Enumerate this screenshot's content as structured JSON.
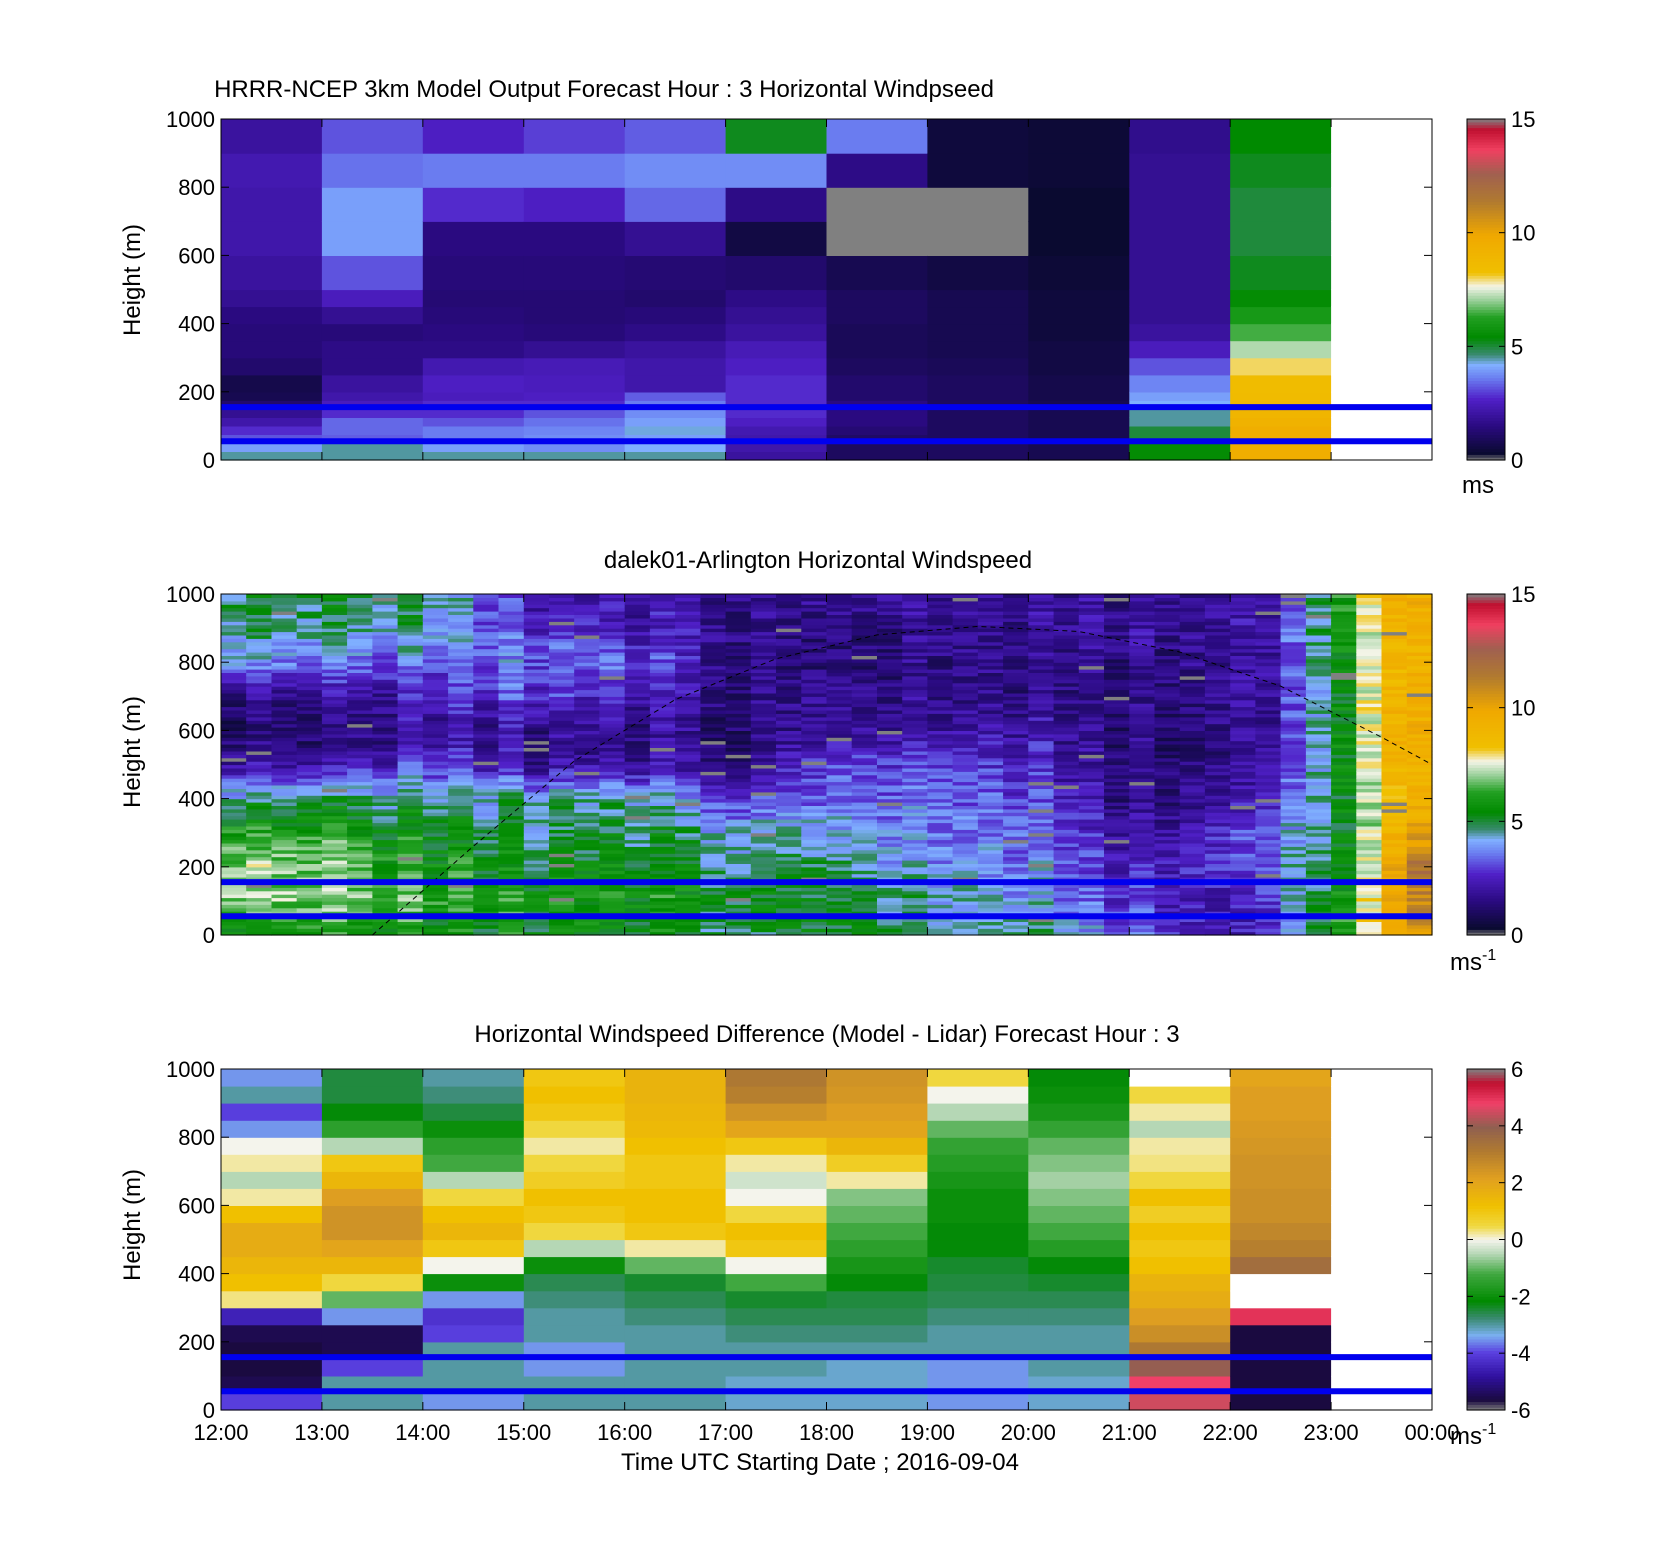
{
  "colors": {
    "reference_line": "#0000ee",
    "missing": "#808080",
    "nodata": "#ffffff",
    "sunline": "#000000"
  },
  "x_axis": {
    "label": "Time UTC  Starting Date ; 2016-09-04",
    "ticks": [
      "12:00",
      "13:00",
      "14:00",
      "15:00",
      "16:00",
      "17:00",
      "18:00",
      "19:00",
      "20:00",
      "21:00",
      "22:00",
      "23:00",
      "00:00"
    ],
    "hour_range": [
      12,
      24
    ]
  },
  "chart_data": [
    {
      "type": "heatmap",
      "title": "HRRR-NCEP 3km Model Output   Forecast Hour : 3 Horizontal Windpseed",
      "ylabel": "Height (m)",
      "yticks": [
        "0",
        "200",
        "400",
        "600",
        "800",
        "1000"
      ],
      "ylim": [
        0,
        1000
      ],
      "xlim": [
        12,
        24
      ],
      "colorbar": {
        "ticks": [
          "0",
          "5",
          "10",
          "15"
        ],
        "range": [
          0,
          15
        ],
        "unit_text": "ms",
        "unit_sup": "",
        "colormap": "speed"
      },
      "reference_lines_m": [
        55,
        155
      ],
      "levels_m": [
        0,
        25,
        50,
        75,
        100,
        125,
        150,
        175,
        200,
        250,
        300,
        350,
        400,
        450,
        500,
        600,
        700,
        800,
        900,
        1000
      ],
      "x_hours": [
        12,
        13,
        14,
        15,
        16,
        17,
        18,
        19,
        20,
        21,
        22,
        23
      ],
      "values": [
        [
          4.5,
          4.0,
          3.2,
          2.8,
          2.2,
          1.8,
          1.2,
          0.8,
          0.7,
          1.2,
          1.4,
          1.4,
          1.5,
          1.8,
          2.0,
          2.2,
          2.2,
          2.3,
          2.0
        ],
        [
          4.5,
          4.5,
          3.3,
          3.4,
          3.4,
          2.8,
          2.5,
          2.2,
          2.0,
          1.6,
          1.6,
          1.4,
          1.8,
          2.5,
          3.2,
          4.0,
          4.0,
          3.5,
          3.2
        ],
        [
          4.5,
          4.0,
          3.6,
          3.6,
          3.2,
          2.8,
          2.8,
          2.5,
          2.6,
          2.3,
          1.6,
          1.5,
          1.4,
          1.3,
          1.4,
          1.5,
          2.8,
          3.6,
          2.6
        ],
        [
          4.5,
          3.8,
          3.8,
          3.7,
          3.5,
          3.2,
          2.8,
          2.6,
          2.5,
          2.4,
          1.8,
          1.4,
          1.3,
          1.3,
          1.4,
          1.5,
          2.6,
          3.6,
          3.0
        ],
        [
          4.5,
          4.2,
          4.0,
          4.3,
          4.0,
          3.8,
          3.6,
          3.3,
          2.2,
          2.2,
          2.0,
          1.6,
          1.4,
          1.2,
          1.3,
          1.8,
          3.4,
          3.8,
          3.3
        ],
        [
          2.0,
          2.2,
          2.2,
          2.3,
          2.6,
          2.8,
          2.8,
          2.8,
          2.8,
          2.6,
          2.4,
          2.0,
          1.8,
          1.6,
          1.2,
          0.6,
          1.6,
          3.8,
          5.2
        ],
        [
          1.0,
          1.0,
          1.1,
          1.3,
          1.5,
          1.5,
          1.5,
          1.2,
          1.2,
          1.0,
          0.9,
          0.9,
          1.0,
          1.0,
          0.8,
          -1,
          -1,
          1.6,
          3.6
        ],
        [
          1.0,
          1.0,
          1.0,
          1.0,
          1.0,
          1.0,
          1.0,
          1.0,
          1.0,
          0.9,
          0.8,
          0.8,
          0.8,
          0.8,
          0.6,
          -1,
          -1,
          0.5,
          0.5
        ],
        [
          0.8,
          0.8,
          0.8,
          0.8,
          0.8,
          0.8,
          0.8,
          0.7,
          0.7,
          0.6,
          0.6,
          0.5,
          0.5,
          0.5,
          0.4,
          0.3,
          0.3,
          0.4,
          0.4
        ],
        [
          5.5,
          5.5,
          5.0,
          5.0,
          4.5,
          4.5,
          4.2,
          4.0,
          3.7,
          3.2,
          2.5,
          2.0,
          1.8,
          1.8,
          1.8,
          1.8,
          1.8,
          1.8,
          1.7
        ],
        [
          9.5,
          9.5,
          9.5,
          9.5,
          9.2,
          9.0,
          8.8,
          8.6,
          8.5,
          8.0,
          7.2,
          6.5,
          6.0,
          5.5,
          5.2,
          5.0,
          5.0,
          5.2,
          5.4
        ],
        [
          null,
          null,
          null,
          null,
          null,
          null,
          null,
          null,
          null,
          null,
          null,
          null,
          null,
          null,
          null,
          null,
          null,
          null,
          null
        ]
      ]
    },
    {
      "type": "heatmap",
      "title": "dalek01-Arlington  Horizontal Windspeed",
      "ylabel": "Height (m)",
      "yticks": [
        "0",
        "200",
        "400",
        "600",
        "800",
        "1000"
      ],
      "ylim": [
        0,
        1000
      ],
      "xlim": [
        12,
        24
      ],
      "colorbar": {
        "ticks": [
          "0",
          "5",
          "10",
          "15"
        ],
        "range": [
          0,
          15
        ],
        "unit_text": "ms",
        "unit_sup": "-1",
        "colormap": "speed"
      },
      "reference_lines_m": [
        55,
        155
      ],
      "sun_elevation_curve": {
        "x_hours": [
          13.5,
          14.5,
          15.5,
          16.5,
          17.5,
          18.5,
          19.5,
          20.5,
          21.5,
          22.5,
          23.5,
          24.0
        ],
        "y_m": [
          0,
          260,
          510,
          690,
          810,
          880,
          905,
          890,
          830,
          730,
          580,
          500
        ]
      },
      "generator": {
        "nx": 48,
        "ny": 100,
        "profiles_hour": [
          12,
          13,
          14,
          15,
          16,
          17,
          18,
          19,
          20,
          21,
          22,
          22.5,
          23,
          23.5,
          24
        ],
        "profiles_m": [
          0,
          100,
          200,
          300,
          400,
          500,
          600,
          700,
          800,
          900,
          1000
        ],
        "profiles": [
          [
            5.5,
            7.0,
            7.0,
            6.0,
            4.5,
            2.0,
            1.0,
            1.5,
            4.0,
            4.5,
            5.0
          ],
          [
            6.0,
            7.0,
            7.0,
            6.2,
            4.8,
            2.2,
            1.2,
            1.8,
            3.5,
            4.8,
            5.0
          ],
          [
            5.5,
            6.5,
            6.0,
            5.5,
            4.8,
            3.0,
            2.0,
            2.5,
            3.5,
            4.5,
            5.0
          ],
          [
            5.5,
            6.0,
            5.5,
            5.0,
            4.5,
            2.0,
            2.0,
            3.0,
            3.5,
            3.0,
            2.5
          ],
          [
            5.5,
            6.0,
            5.5,
            5.0,
            4.6,
            2.2,
            1.8,
            2.5,
            3.5,
            2.5,
            2.0
          ],
          [
            5.0,
            5.5,
            5.0,
            4.6,
            3.2,
            1.6,
            1.6,
            1.8,
            2.0,
            2.0,
            2.0
          ],
          [
            5.0,
            5.0,
            4.6,
            4.0,
            3.2,
            2.8,
            1.6,
            1.6,
            1.0,
            1.2,
            1.8
          ],
          [
            4.8,
            4.5,
            4.0,
            3.6,
            3.4,
            3.0,
            2.0,
            1.6,
            1.6,
            1.8,
            1.8
          ],
          [
            4.5,
            4.0,
            3.6,
            3.4,
            3.0,
            2.6,
            2.0,
            1.6,
            1.6,
            1.8,
            1.8
          ],
          [
            3.5,
            3.0,
            2.5,
            2.0,
            1.6,
            1.6,
            1.6,
            1.6,
            1.8,
            2.0,
            2.0
          ],
          [
            2.2,
            2.5,
            3.0,
            3.0,
            2.2,
            1.8,
            1.8,
            2.0,
            2.0,
            2.2,
            2.2
          ],
          [
            3.0,
            3.5,
            4.0,
            3.6,
            3.0,
            2.5,
            2.2,
            2.4,
            2.4,
            2.6,
            2.6
          ],
          [
            6.0,
            5.5,
            5.2,
            5.0,
            5.0,
            5.0,
            5.0,
            5.0,
            5.2,
            5.5,
            5.5
          ],
          [
            9.5,
            8.8,
            8.6,
            8.2,
            8.0,
            8.5,
            8.8,
            8.5,
            8.2,
            8.5,
            9.0
          ],
          [
            10.5,
            11.5,
            12.5,
            10.5,
            9.5,
            9.5,
            9.5,
            9.5,
            9.5,
            9.5,
            9.5
          ]
        ],
        "noise_amplitude": 1.4,
        "missing_fraction": 0.012
      }
    },
    {
      "type": "heatmap",
      "title": "Horizontal Windspeed Difference (Model - Lidar) Forecast Hour : 3",
      "ylabel": "Height (m)",
      "yticks": [
        "0",
        "200",
        "400",
        "600",
        "800",
        "1000"
      ],
      "ylim": [
        0,
        1000
      ],
      "xlim": [
        12,
        24
      ],
      "colorbar": {
        "ticks": [
          "-6",
          "-4",
          "-2",
          "0",
          "2",
          "4",
          "6"
        ],
        "range": [
          -6,
          6
        ],
        "unit_text": "ms",
        "unit_sup": "-1",
        "colormap": "diff"
      },
      "reference_lines_m": [
        55,
        155
      ],
      "levels_m": [
        0,
        50,
        100,
        150,
        200,
        250,
        300,
        350,
        400,
        450,
        500,
        550,
        600,
        650,
        700,
        750,
        800,
        850,
        900,
        950,
        1000
      ],
      "x_hours": [
        12,
        13,
        14,
        15,
        16,
        17,
        18,
        19,
        20,
        21,
        22,
        23
      ],
      "values": [
        [
          -4.0,
          -5.5,
          -7,
          -7,
          -5.5,
          -4.5,
          0.3,
          1.2,
          1.5,
          1.8,
          1.8,
          1.2,
          0.2,
          -0.5,
          0.2,
          0.0,
          -3.5,
          -4.0,
          -3.0,
          -3.5
        ],
        [
          -3.0,
          -3.0,
          -4.0,
          -5.5,
          -5.5,
          -3.5,
          -1.0,
          0.5,
          1.5,
          2.0,
          2.5,
          2.5,
          2.2,
          1.5,
          1.0,
          -0.5,
          -1.5,
          -2.2,
          -2.5,
          -2.5
        ],
        [
          -3.5,
          -3.0,
          -3.0,
          -3.0,
          -4.0,
          -4.2,
          -3.5,
          -2.0,
          0.0,
          1.0,
          1.5,
          1.2,
          0.5,
          -0.5,
          -1.2,
          -1.5,
          -2.0,
          -2.5,
          -2.8,
          -3.0
        ],
        [
          -3.0,
          -3.0,
          -3.5,
          -3.5,
          -3.0,
          -3.0,
          -2.8,
          -2.6,
          -2.0,
          -0.5,
          0.5,
          1.0,
          1.2,
          0.8,
          0.5,
          0.2,
          0.5,
          1.0,
          1.2,
          1.0
        ],
        [
          -3.0,
          -3.0,
          -3.0,
          -3.0,
          -3.0,
          -2.8,
          -2.6,
          -2.4,
          -1.0,
          0.2,
          1.0,
          1.2,
          1.2,
          1.0,
          1.0,
          1.2,
          1.4,
          1.5,
          1.6,
          1.6
        ],
        [
          -3.2,
          -3.2,
          -3.0,
          -3.0,
          -2.8,
          -2.6,
          -2.4,
          -1.2,
          0.0,
          1.0,
          1.2,
          0.5,
          0.0,
          -0.3,
          0.2,
          1.0,
          2.0,
          2.5,
          3.0,
          3.2
        ],
        [
          -3.2,
          -3.2,
          -3.2,
          -3.0,
          -2.8,
          -2.6,
          -2.5,
          -2.2,
          -1.8,
          -1.5,
          -1.2,
          -1.0,
          -0.8,
          0.2,
          0.8,
          1.5,
          2.0,
          2.2,
          2.4,
          2.5
        ],
        [
          -3.5,
          -3.5,
          -3.5,
          -3.0,
          -3.0,
          -2.8,
          -2.6,
          -2.5,
          -2.4,
          -2.2,
          -2.2,
          -2.0,
          -2.0,
          -1.8,
          -1.6,
          -1.4,
          -1.0,
          -0.5,
          0.0,
          0.5
        ],
        [
          -3.2,
          -3.2,
          -3.0,
          -3.0,
          -3.0,
          -2.8,
          -2.6,
          -2.4,
          -2.2,
          -1.6,
          -1.2,
          -1.0,
          -0.8,
          -0.6,
          -0.8,
          -1.0,
          -1.4,
          -1.8,
          -2.0,
          -2.2
        ],
        [
          4.5,
          4.8,
          4.0,
          3.2,
          2.6,
          2.2,
          1.8,
          1.6,
          1.2,
          1.0,
          1.2,
          0.8,
          1.2,
          0.5,
          0.3,
          0.2,
          -0.5,
          0.2,
          0.5,
          null
        ],
        [
          -7,
          -7,
          -7,
          -7,
          -7,
          5.0,
          null,
          null,
          3.5,
          3.0,
          2.8,
          2.6,
          2.6,
          2.5,
          2.5,
          2.4,
          2.3,
          2.2,
          2.2,
          2.0
        ],
        [
          null,
          null,
          null,
          null,
          null,
          null,
          null,
          null,
          null,
          null,
          null,
          null,
          null,
          null,
          null,
          null,
          null,
          null,
          null,
          null
        ]
      ]
    }
  ]
}
